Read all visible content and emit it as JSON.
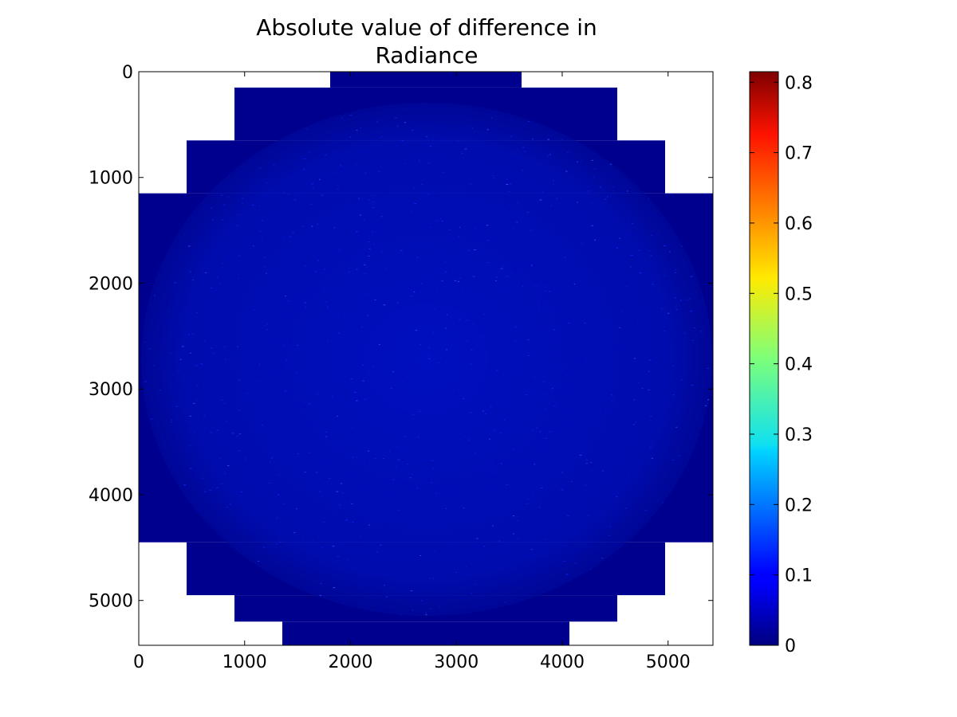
{
  "chart_data": {
    "type": "heatmap",
    "title_lines": [
      "Absolute value of difference in",
      "Radiance"
    ],
    "xlabel": "",
    "ylabel": "",
    "xlim": [
      0,
      5424
    ],
    "ylim": [
      5424,
      0
    ],
    "x_ticks": [
      0,
      1000,
      2000,
      3000,
      4000,
      5000
    ],
    "x_tick_labels": [
      "0",
      "1000",
      "2000",
      "3000",
      "4000",
      "5000"
    ],
    "y_ticks": [
      0,
      1000,
      2000,
      3000,
      4000,
      5000
    ],
    "y_tick_labels": [
      "0",
      "1000",
      "2000",
      "3000",
      "4000",
      "5000"
    ],
    "colormap": "jet",
    "colorbar": {
      "range": [
        0,
        0.815
      ],
      "ticks": [
        0,
        0.1,
        0.2,
        0.3,
        0.4,
        0.5,
        0.6,
        0.7,
        0.8
      ],
      "tick_labels": [
        "0",
        "0.1",
        "0.2",
        "0.3",
        "0.4",
        "0.5",
        "0.6",
        "0.7",
        "0.8"
      ],
      "location": "right"
    },
    "data_footprint_rows": [
      {
        "y": [
          0,
          150
        ],
        "x": [
          1808,
          3616
        ]
      },
      {
        "y": [
          150,
          650
        ],
        "x": [
          904,
          4520
        ]
      },
      {
        "y": [
          650,
          1150
        ],
        "x": [
          452,
          4972
        ]
      },
      {
        "y": [
          1150,
          4450
        ],
        "x": [
          0,
          5424
        ]
      },
      {
        "y": [
          4450,
          4950
        ],
        "x": [
          452,
          4972
        ]
      },
      {
        "y": [
          4950,
          5200
        ],
        "x": [
          904,
          4520
        ]
      },
      {
        "y": [
          5200,
          5424
        ],
        "x": [
          1356,
          4068
        ]
      }
    ],
    "typical_value": 0.03,
    "grid": false,
    "colors": {
      "background_fill": "#00008f",
      "disk_texture": "#0018d8",
      "no_data": "#ffffff"
    }
  }
}
